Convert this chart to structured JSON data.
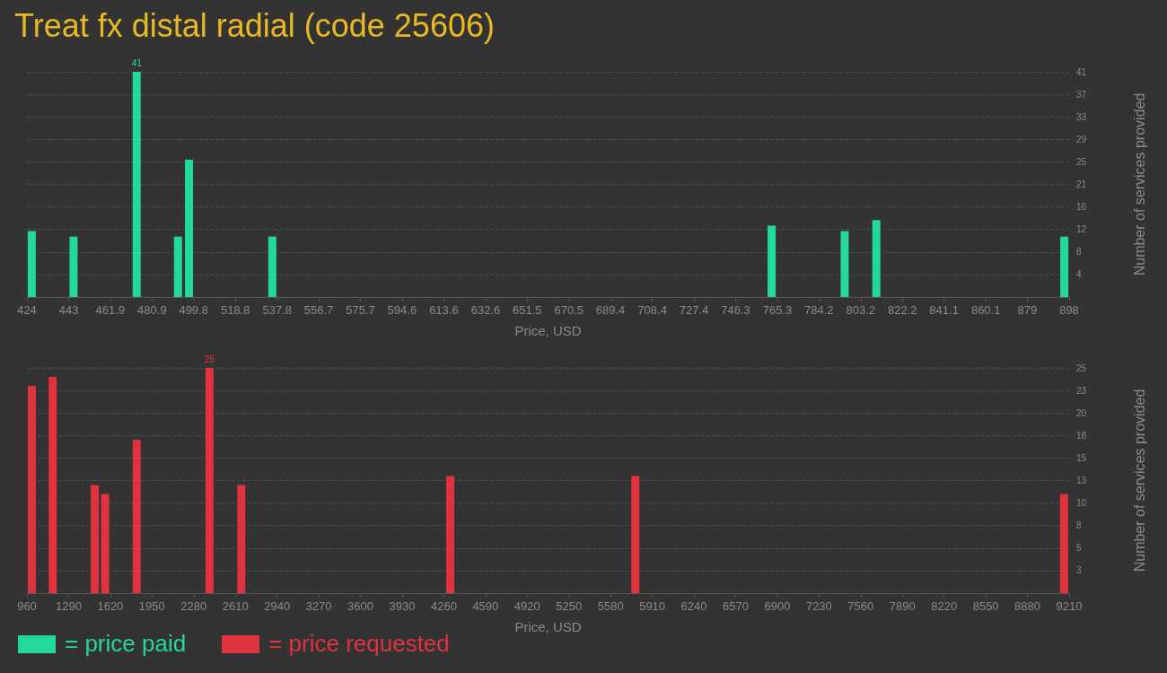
{
  "chart_data": [
    {
      "type": "bar",
      "title": "Treat fx distal radial (code 25606)",
      "xlabel": "Price, USD",
      "ylabel": "Number of services provided",
      "series": [
        {
          "name": "= price paid",
          "color": "#22d89c",
          "x": [
            426.2,
            445.2,
            473.9,
            492.7,
            497.7,
            535.6,
            762.7,
            795.9,
            810.3,
            895.8
          ],
          "values": [
            12,
            11,
            41,
            11,
            25,
            11,
            13,
            12,
            14,
            11
          ],
          "value_labels": [
            null,
            null,
            "41",
            null,
            null,
            null,
            null,
            null,
            null,
            null
          ]
        }
      ],
      "xlim": [
        424,
        898
      ],
      "xticks": [
        424,
        443,
        461.9,
        480.9,
        499.8,
        518.8,
        537.8,
        556.7,
        575.7,
        594.6,
        613.6,
        632.6,
        651.5,
        670.5,
        689.4,
        708.4,
        727.4,
        746.3,
        765.3,
        784.2,
        803.2,
        822.2,
        841.1,
        860.1,
        879,
        898
      ],
      "ylim": [
        0,
        41
      ],
      "yticks": [
        {
          "value": 4.1,
          "label": "4"
        },
        {
          "value": 8.2,
          "label": "8"
        },
        {
          "value": 12.3,
          "label": "12"
        },
        {
          "value": 16.4,
          "label": "16"
        },
        {
          "value": 20.5,
          "label": "21"
        },
        {
          "value": 24.6,
          "label": "25"
        },
        {
          "value": 28.7,
          "label": "29"
        },
        {
          "value": 32.8,
          "label": "33"
        },
        {
          "value": 36.9,
          "label": "37"
        },
        {
          "value": 41,
          "label": "41"
        }
      ],
      "grid": "y",
      "legend": "bottom left"
    },
    {
      "type": "bar",
      "xlabel": "Price, USD",
      "ylabel": "Number of services provided",
      "series": [
        {
          "name": "= price requested",
          "color": "#e0323f",
          "x": [
            999,
            1164,
            1497,
            1579,
            1829,
            2405,
            2657,
            4311,
            5776,
            9170
          ],
          "values": [
            23,
            24,
            12,
            11,
            17,
            25,
            12,
            13,
            13,
            11
          ],
          "value_labels": [
            null,
            null,
            null,
            null,
            null,
            "25",
            null,
            null,
            null,
            null
          ]
        }
      ],
      "xlim": [
        960,
        9210
      ],
      "xticks": [
        960,
        1290,
        1620,
        1950,
        2280,
        2610,
        2940,
        3270,
        3600,
        3930,
        4260,
        4590,
        4920,
        5250,
        5580,
        5910,
        6240,
        6570,
        6900,
        7230,
        7560,
        7890,
        8220,
        8550,
        8880,
        9210
      ],
      "ylim": [
        0,
        25
      ],
      "yticks": [
        {
          "value": 2.5,
          "label": "3"
        },
        5,
        {
          "value": 7.5,
          "label": "8"
        },
        10,
        {
          "value": 12.5,
          "label": "13"
        },
        15,
        {
          "value": 17.5,
          "label": "18"
        },
        20,
        {
          "value": 22.5,
          "label": "23"
        },
        25
      ],
      "grid": "y",
      "legend": "bottom left"
    }
  ]
}
